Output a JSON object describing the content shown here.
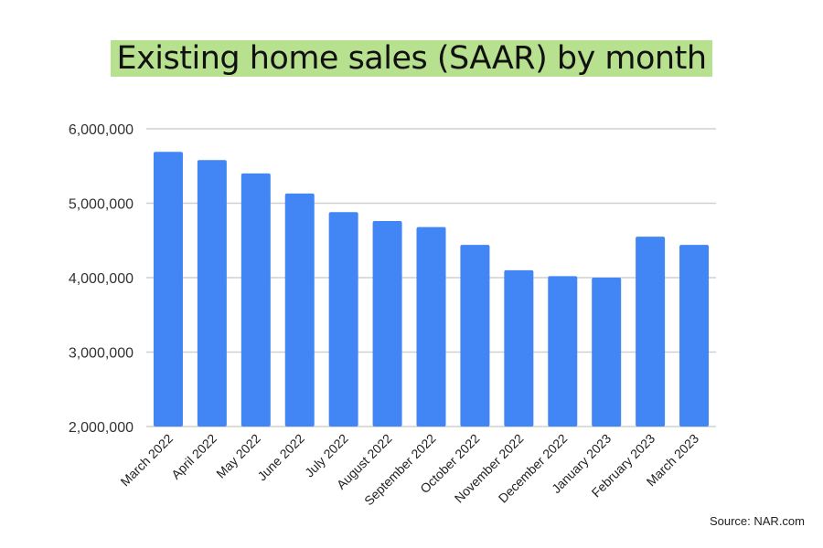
{
  "chart_data": {
    "type": "bar",
    "title": "Existing home sales (SAAR) by month",
    "categories": [
      "March 2022",
      "April 2022",
      "May 2022",
      "June 2022",
      "July 2022",
      "August 2022",
      "September 2022",
      "October 2022",
      "November 2022",
      "December 2022",
      "January 2023",
      "February 2023",
      "March 2023"
    ],
    "values": [
      5690000,
      5580000,
      5400000,
      5130000,
      4880000,
      4760000,
      4680000,
      4440000,
      4100000,
      4020000,
      4000000,
      4550000,
      4440000
    ],
    "ylim": [
      2000000,
      6000000
    ],
    "yticks": [
      "2,000,000",
      "3,000,000",
      "4,000,000",
      "5,000,000",
      "6,000,000"
    ],
    "xlabel": "",
    "ylabel": "",
    "grid": true,
    "bar_color": "#4285f4",
    "title_highlight": "#b7e08f"
  },
  "source": "Source: NAR.com"
}
